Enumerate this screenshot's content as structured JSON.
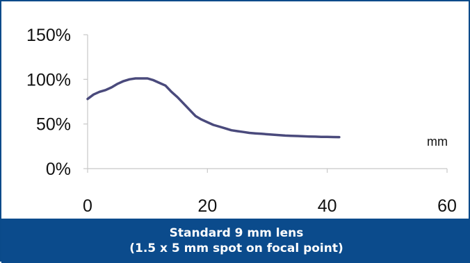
{
  "chart_data": {
    "type": "line",
    "title": "",
    "xlabel": "mm",
    "ylabel": "",
    "xlim": [
      0,
      60
    ],
    "ylim": [
      0,
      150
    ],
    "x_ticks": [
      0,
      20,
      40,
      60
    ],
    "y_ticks": [
      0,
      50,
      100,
      150
    ],
    "x_tick_labels": [
      "0",
      "20",
      "40",
      "60"
    ],
    "y_tick_labels": [
      "0%",
      "50%",
      "100%",
      "150%"
    ],
    "grid": false,
    "legend": "none",
    "series": [
      {
        "color": "#4a4a7c",
        "x": [
          0,
          1,
          2,
          3,
          4,
          5,
          6,
          7,
          8,
          9,
          10,
          11,
          12,
          13,
          14,
          15,
          16,
          17,
          18,
          19,
          20,
          21,
          22,
          23,
          24,
          25,
          26,
          27,
          28,
          29,
          30,
          31,
          32,
          33,
          34,
          35,
          36,
          37,
          38,
          39,
          40,
          41,
          42
        ],
        "y": [
          78,
          83,
          86,
          88,
          91,
          95,
          98,
          100,
          101,
          101,
          101,
          99,
          96,
          93,
          86,
          80,
          73,
          66,
          59,
          55,
          52,
          49,
          47,
          45,
          43,
          42,
          41,
          40,
          39.5,
          39,
          38.5,
          38,
          37.5,
          37,
          36.8,
          36.5,
          36.2,
          36,
          35.8,
          35.6,
          35.5,
          35.4,
          35.3
        ]
      }
    ]
  },
  "caption": {
    "line1": "Standard 9 mm lens",
    "line2": "(1.5 x 5 mm spot on focal point)"
  }
}
